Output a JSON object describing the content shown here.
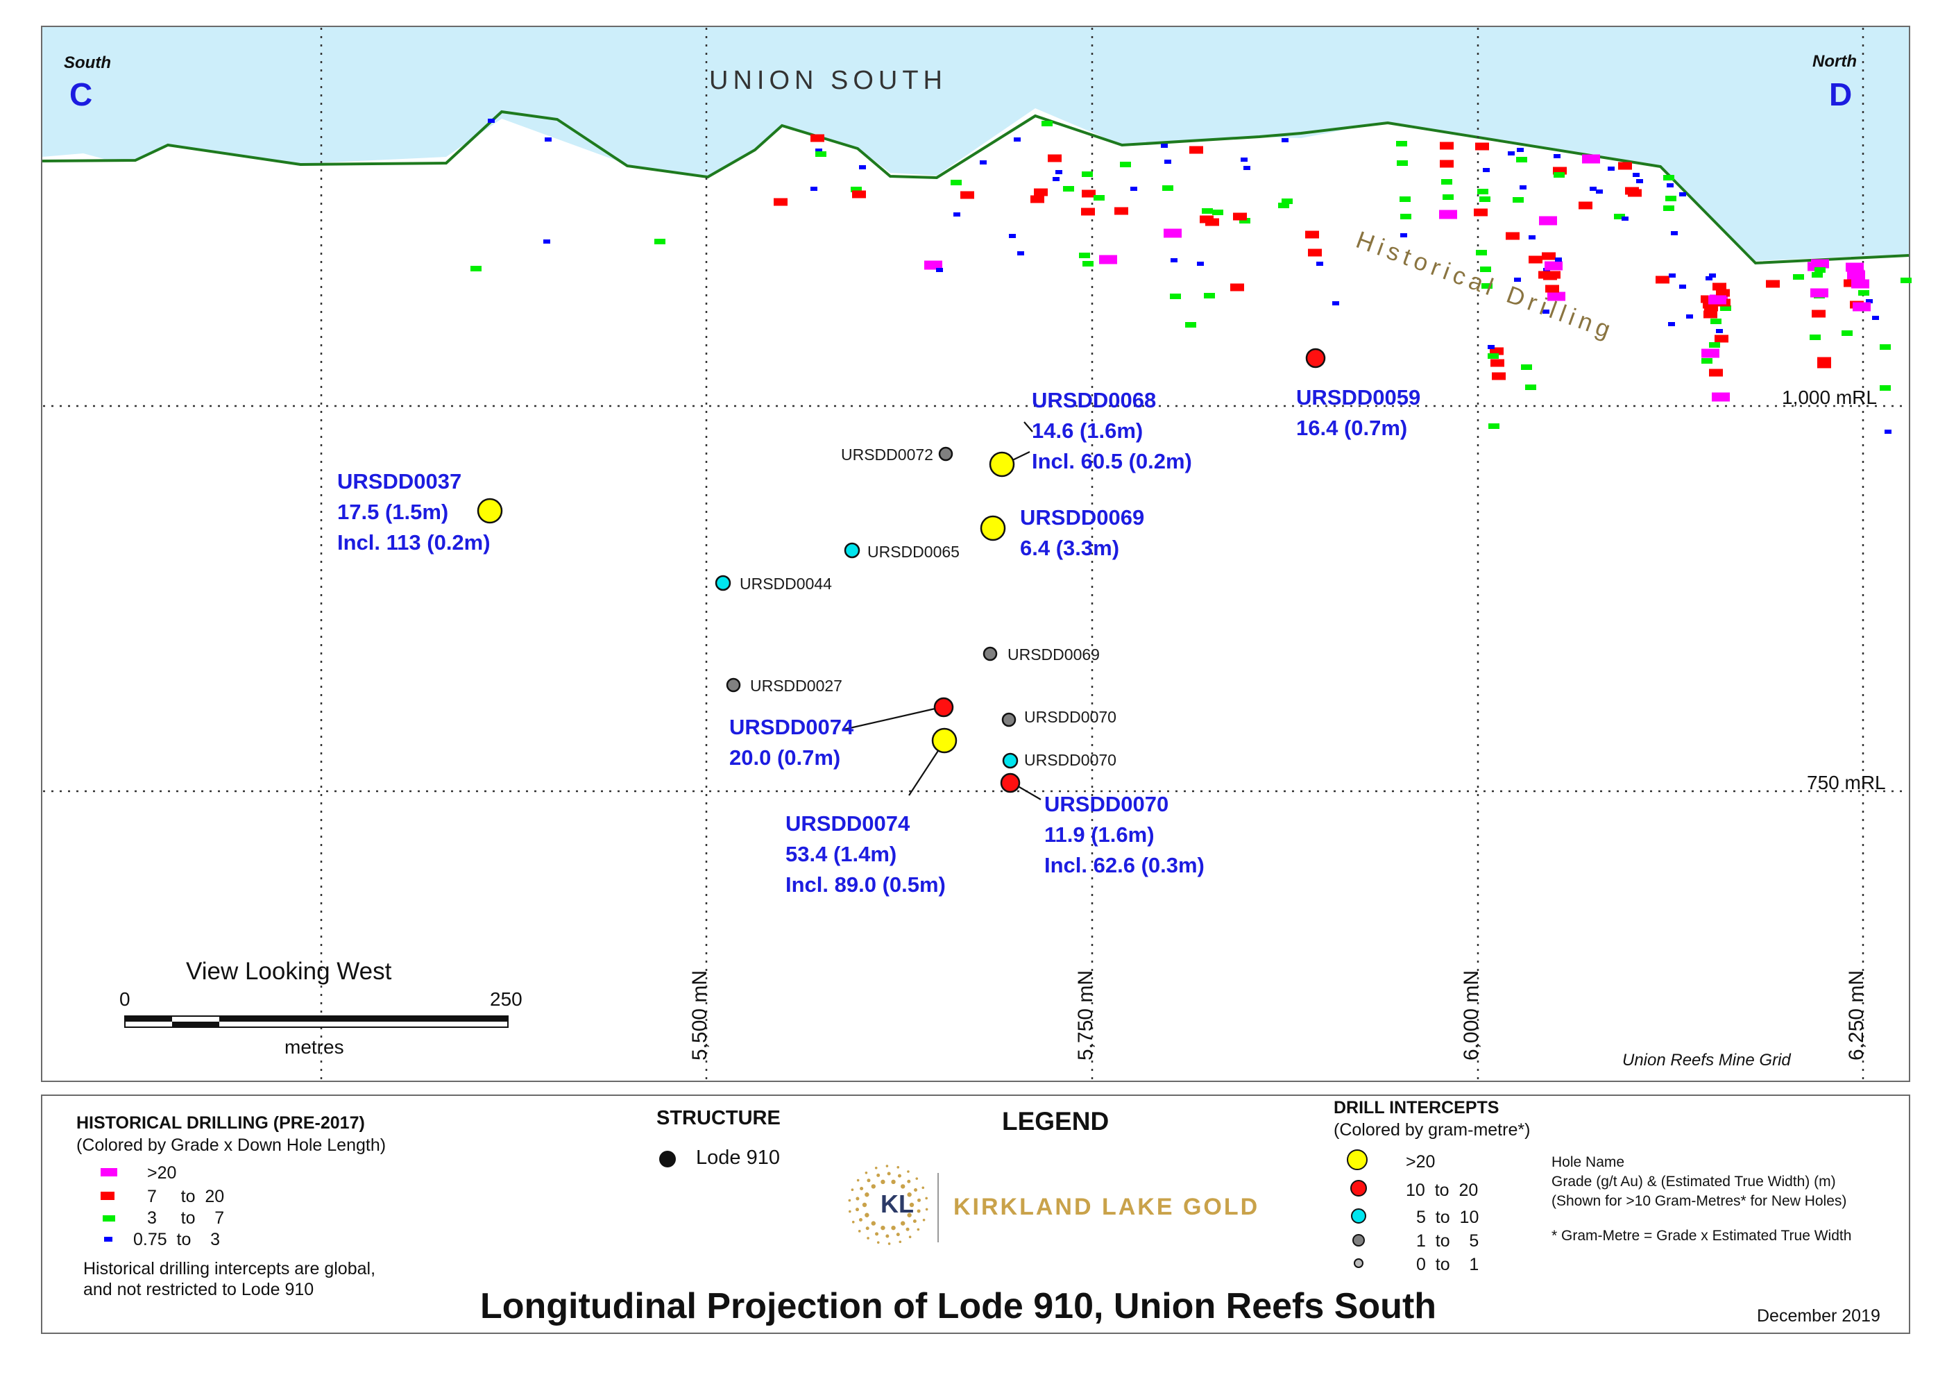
{
  "map": {
    "south_label": "South",
    "south_letter": "C",
    "north_label": "North",
    "north_letter": "D",
    "area_title": "UNION SOUTH",
    "historical_label": "Historical Drilling",
    "rl_levels": [
      "1,000 mRL",
      "750 mRL"
    ],
    "northings": [
      "5,500 mN",
      "5,750 mN",
      "6,000 mN",
      "6,250 mN"
    ],
    "view_label": "View Looking West",
    "scale_start": "0",
    "scale_end": "250",
    "scale_unit": "metres",
    "grid_label": "Union Reefs Mine Grid"
  },
  "intercepts_labeled": [
    {
      "hole": "URSDD0037",
      "line1": "17.5 (1.5m)",
      "line2": "Incl. 113 (0.2m)",
      "category": ">20"
    },
    {
      "hole": "URSDD0068",
      "line1": "14.6 (1.6m)",
      "line2": "Incl. 60.5 (0.2m)",
      "category": ">20"
    },
    {
      "hole": "URSDD0069",
      "line1": "6.4 (3.3m)",
      "line2": "",
      "category": ">20"
    },
    {
      "hole": "URSDD0059",
      "line1": "16.4 (0.7m)",
      "line2": "",
      "category": "10 to 20"
    },
    {
      "hole": "URSDD0074",
      "line1": "20.0 (0.7m)",
      "line2": "",
      "category": "10 to 20"
    },
    {
      "hole": "URSDD0074",
      "line1": "53.4 (1.4m)",
      "line2": "Incl. 89.0 (0.5m)",
      "category": ">20"
    },
    {
      "hole": "URSDD0070",
      "line1": "11.9 (1.6m)",
      "line2": "Incl. 62.6 (0.3m)",
      "category": "10 to 20"
    }
  ],
  "intercepts_small": [
    {
      "hole": "URSDD0072",
      "category": "1 to 5"
    },
    {
      "hole": "URSDD0065",
      "category": "5 to 10"
    },
    {
      "hole": "URSDD0044",
      "category": "5 to 10"
    },
    {
      "hole": "URSDD0069",
      "category": "1 to 5"
    },
    {
      "hole": "URSDD0027",
      "category": "1 to 5"
    },
    {
      "hole": "URSDD0070",
      "category": "1 to 5"
    },
    {
      "hole": "URSDD0070",
      "category": "5 to 10"
    }
  ],
  "legend": {
    "title": "LEGEND",
    "historical": {
      "title": "HISTORICAL DRILLING (PRE-2017)",
      "subtitle": "(Colored by Grade x Down Hole Length)",
      "items": [
        {
          "label": ">20",
          "color": "#ff00ff"
        },
        {
          "label": "7     to  20",
          "color": "#ff0000"
        },
        {
          "label": "3     to    7",
          "color": "#00ee00"
        },
        {
          "label": "0.75  to    3",
          "color": "#0000ff"
        }
      ],
      "note_line1": "Historical drilling intercepts are global,",
      "note_line2": "and not restricted to Lode 910"
    },
    "structure": {
      "title": "STRUCTURE",
      "item": "Lode 910"
    },
    "intercepts": {
      "title": "DRILL INTERCEPTS",
      "subtitle": "(Colored by gram-metre*)",
      "items": [
        {
          "label": ">20",
          "color": "#ffff00"
        },
        {
          "label": "10  to  20",
          "color": "#ff0000"
        },
        {
          "label": "5  to  10",
          "color": "#00e5ee"
        },
        {
          "label": "1  to    5",
          "color": "#888888"
        },
        {
          "label": "0  to    1",
          "color": "#bbbbbb"
        }
      ],
      "note_lines": [
        "Hole Name",
        "Grade (g/t Au) & (Estimated True Width) (m)",
        "(Shown for >10 Gram-Metres* for New Holes)"
      ],
      "footnote": "* Gram-Metre = Grade x Estimated True Width"
    },
    "logo_mark": "KL",
    "logo_text": "KIRKLAND LAKE GOLD"
  },
  "footer": {
    "title": "Longitudinal Projection of Lode 910, Union Reefs South",
    "date": "December 2019"
  },
  "colors": {
    "sky": "#cdeefa",
    "topo_line": "#1e7a1e",
    "label_blue": "#1c1ce0",
    "gold": "#c9a24a"
  }
}
